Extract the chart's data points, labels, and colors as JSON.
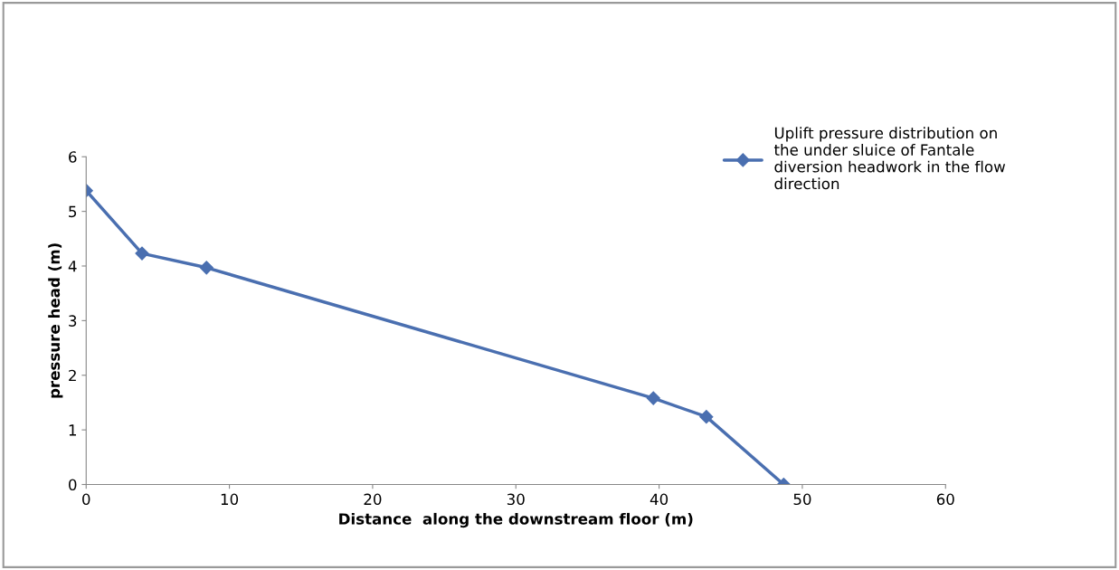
{
  "chart_data": {
    "type": "line",
    "xlabel": "Distance  along the downstream floor (m)",
    "ylabel": "pressure head (m)",
    "series": [
      {
        "name": "Uplift pressure distribution on the under sluice of Fantale diversion headwork in the flow direction",
        "color": "#4a6fb0",
        "x": [
          0,
          3.9,
          8.4,
          39.6,
          43.3,
          48.7
        ],
        "values": [
          5.38,
          4.23,
          3.97,
          1.58,
          1.24,
          0
        ]
      }
    ],
    "xlim": [
      0,
      60
    ],
    "xticks": [
      0,
      10,
      20,
      30,
      40,
      50,
      60
    ],
    "ylim": [
      0,
      6
    ],
    "yticks": [
      0,
      1,
      2,
      3,
      4,
      5,
      6
    ],
    "grid": false,
    "legend": "right",
    "marker": "diamond",
    "line_style": "solid"
  }
}
